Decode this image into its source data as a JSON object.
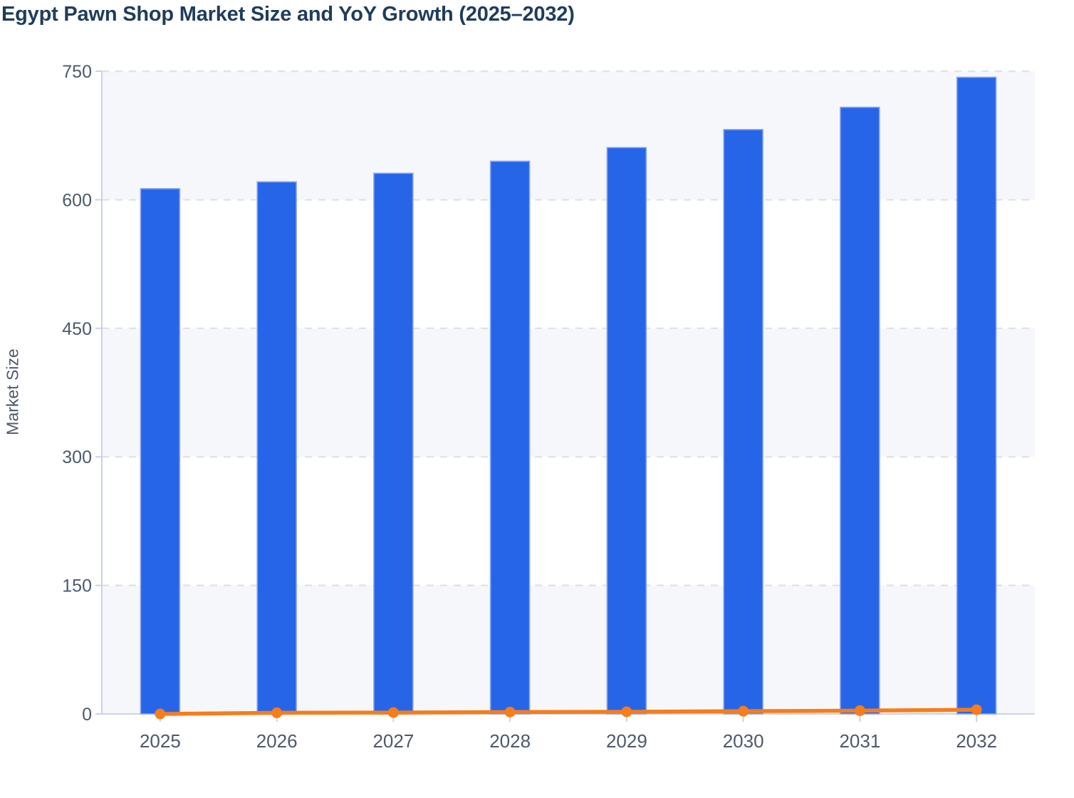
{
  "chart_data": {
    "type": "bar",
    "title": "Egypt Pawn Shop Market Size and YoY Growth (2025–2032)",
    "ylabel": "Market Size",
    "xlabel": "",
    "categories": [
      "2025",
      "2026",
      "2027",
      "2028",
      "2029",
      "2030",
      "2031",
      "2032"
    ],
    "series": [
      {
        "name": "Market Size",
        "type": "bar",
        "color": "#2765e8",
        "border_color": "#8fa9ee",
        "values": [
          613,
          621,
          631,
          645,
          661,
          682,
          708,
          743
        ]
      },
      {
        "name": "YoY Growth",
        "type": "line",
        "color": "#f67d1a",
        "marker": "circle",
        "values": [
          0,
          1.3,
          1.6,
          2.2,
          2.5,
          3.2,
          3.8,
          4.9
        ]
      }
    ],
    "ylim": [
      0,
      750
    ],
    "ytick_interval": 150,
    "yticks": [
      "0",
      "150",
      "300",
      "450",
      "600",
      "750"
    ],
    "grid": "horizontal-dashed",
    "legend_position": "none",
    "plot_band_colors": [
      "#f6f7fa",
      "#ffffff"
    ]
  },
  "colors": {
    "title_text": "#1f3c5d",
    "axis_text": "#4d596b",
    "axis_line": "#c7d2ee",
    "gridline": "#e0e3e8",
    "band_shade": "#f6f7fa",
    "bar_fill": "#2765e8",
    "bar_border": "#8fa9ee",
    "line_orange": "#f67d1a",
    "background": "#ffffff"
  }
}
